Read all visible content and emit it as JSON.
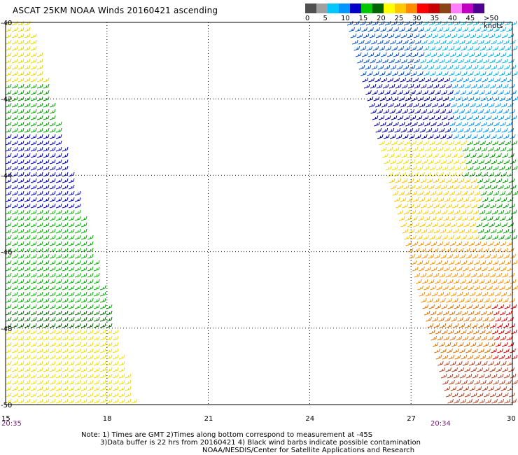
{
  "title": "ASCAT 25KM NOAA Winds 20160421 ascending",
  "legend": {
    "labels": [
      "0",
      "5",
      "10",
      "15",
      "20",
      "25",
      "30",
      "35",
      "40",
      "45",
      ">50 knots"
    ],
    "colors": [
      "#505050",
      "#a0a0a0",
      "#00c8ff",
      "#0096ff",
      "#0000c8",
      "#00c800",
      "#006400",
      "#ffff00",
      "#ffc800",
      "#ff8c00",
      "#ff0000",
      "#c80000",
      "#8b4513",
      "#ff80ff",
      "#c000c0",
      "#500090"
    ]
  },
  "map": {
    "lon_labels": [
      "15",
      "18",
      "21",
      "24",
      "27",
      "30"
    ],
    "lat_labels": [
      "-40",
      "-42",
      "-44",
      "-46",
      "-48",
      "-50"
    ]
  },
  "timestamps": {
    "left": "20:35",
    "right": "20:34"
  },
  "notes": {
    "line1": "Note: 1) Times are GMT 2)Times along bottom correspond to measurement at -45S",
    "line2": "3)Data buffer is 22 hrs from 20160421 4) Black wind barbs indicate possible contamination",
    "line3": "NOAA/NESDIS/Center for Satellite Applications and Research"
  }
}
